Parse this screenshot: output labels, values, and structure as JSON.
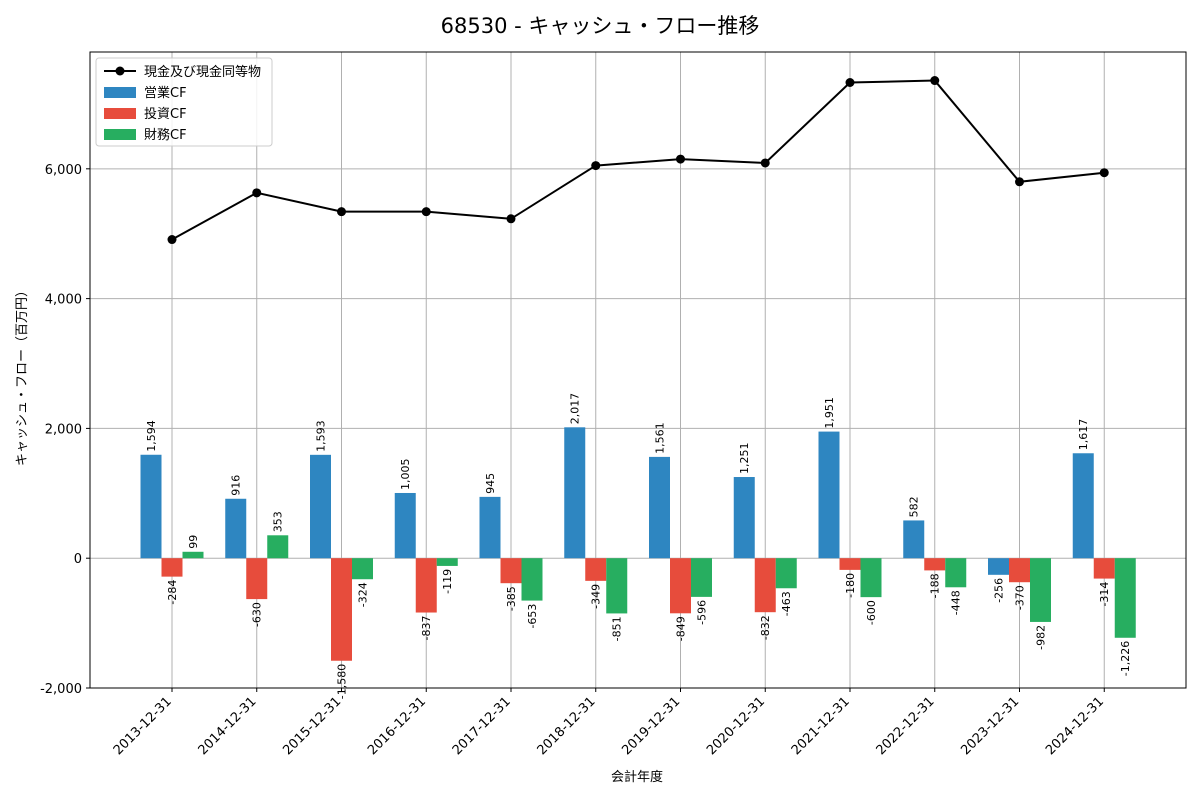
{
  "chart_data": {
    "type": "bar",
    "title": "68530 - キャッシュ・フロー推移",
    "xlabel": "会計年度",
    "ylabel": "キャッシュ・フロー（百万円）",
    "ylim": [
      -2000,
      7800
    ],
    "yticks": [
      -2000,
      0,
      2000,
      4000,
      6000
    ],
    "ytick_labels": [
      "-2,000",
      "0",
      "2,000",
      "4,000",
      "6,000"
    ],
    "grid": true,
    "legend_position": "top-left",
    "categories": [
      "2013-12-31",
      "2014-12-31",
      "2015-12-31",
      "2016-12-31",
      "2017-12-31",
      "2018-12-31",
      "2019-12-31",
      "2020-12-31",
      "2021-12-31",
      "2022-12-31",
      "2023-12-31",
      "2024-12-31"
    ],
    "series": [
      {
        "name": "営業CF",
        "kind": "bar",
        "color": "#2e86c1",
        "values": [
          1594,
          916,
          1593,
          1005,
          945,
          2017,
          1561,
          1251,
          1951,
          582,
          -256,
          1617
        ],
        "labels": [
          "1,594",
          "916",
          "1,593",
          "1,005",
          "945",
          "2,017",
          "1,561",
          "1,251",
          "1,951",
          "582",
          "-256",
          "1,617"
        ]
      },
      {
        "name": "投資CF",
        "kind": "bar",
        "color": "#e74c3c",
        "values": [
          -284,
          -630,
          -1580,
          -837,
          -385,
          -349,
          -849,
          -832,
          -180,
          -188,
          -370,
          -314
        ],
        "labels": [
          "-284",
          "-630",
          "-1,580",
          "-837",
          "-385",
          "-349",
          "-849",
          "-832",
          "-180",
          "-188",
          "-370",
          "-314"
        ]
      },
      {
        "name": "財務CF",
        "kind": "bar",
        "color": "#27ae60",
        "values": [
          99,
          353,
          -324,
          -119,
          -653,
          -851,
          -596,
          -463,
          -600,
          -448,
          -982,
          -1226
        ],
        "labels": [
          "99",
          "353",
          "-324",
          "-119",
          "-653",
          "-851",
          "-596",
          "-463",
          "-600",
          "-448",
          "-982",
          "-1,226"
        ]
      },
      {
        "name": "現金及び現金同等物",
        "kind": "line",
        "color": "#000000",
        "values": [
          4910,
          5630,
          5340,
          5340,
          5230,
          6050,
          6150,
          6090,
          7330,
          7360,
          5800,
          5940
        ]
      }
    ]
  }
}
